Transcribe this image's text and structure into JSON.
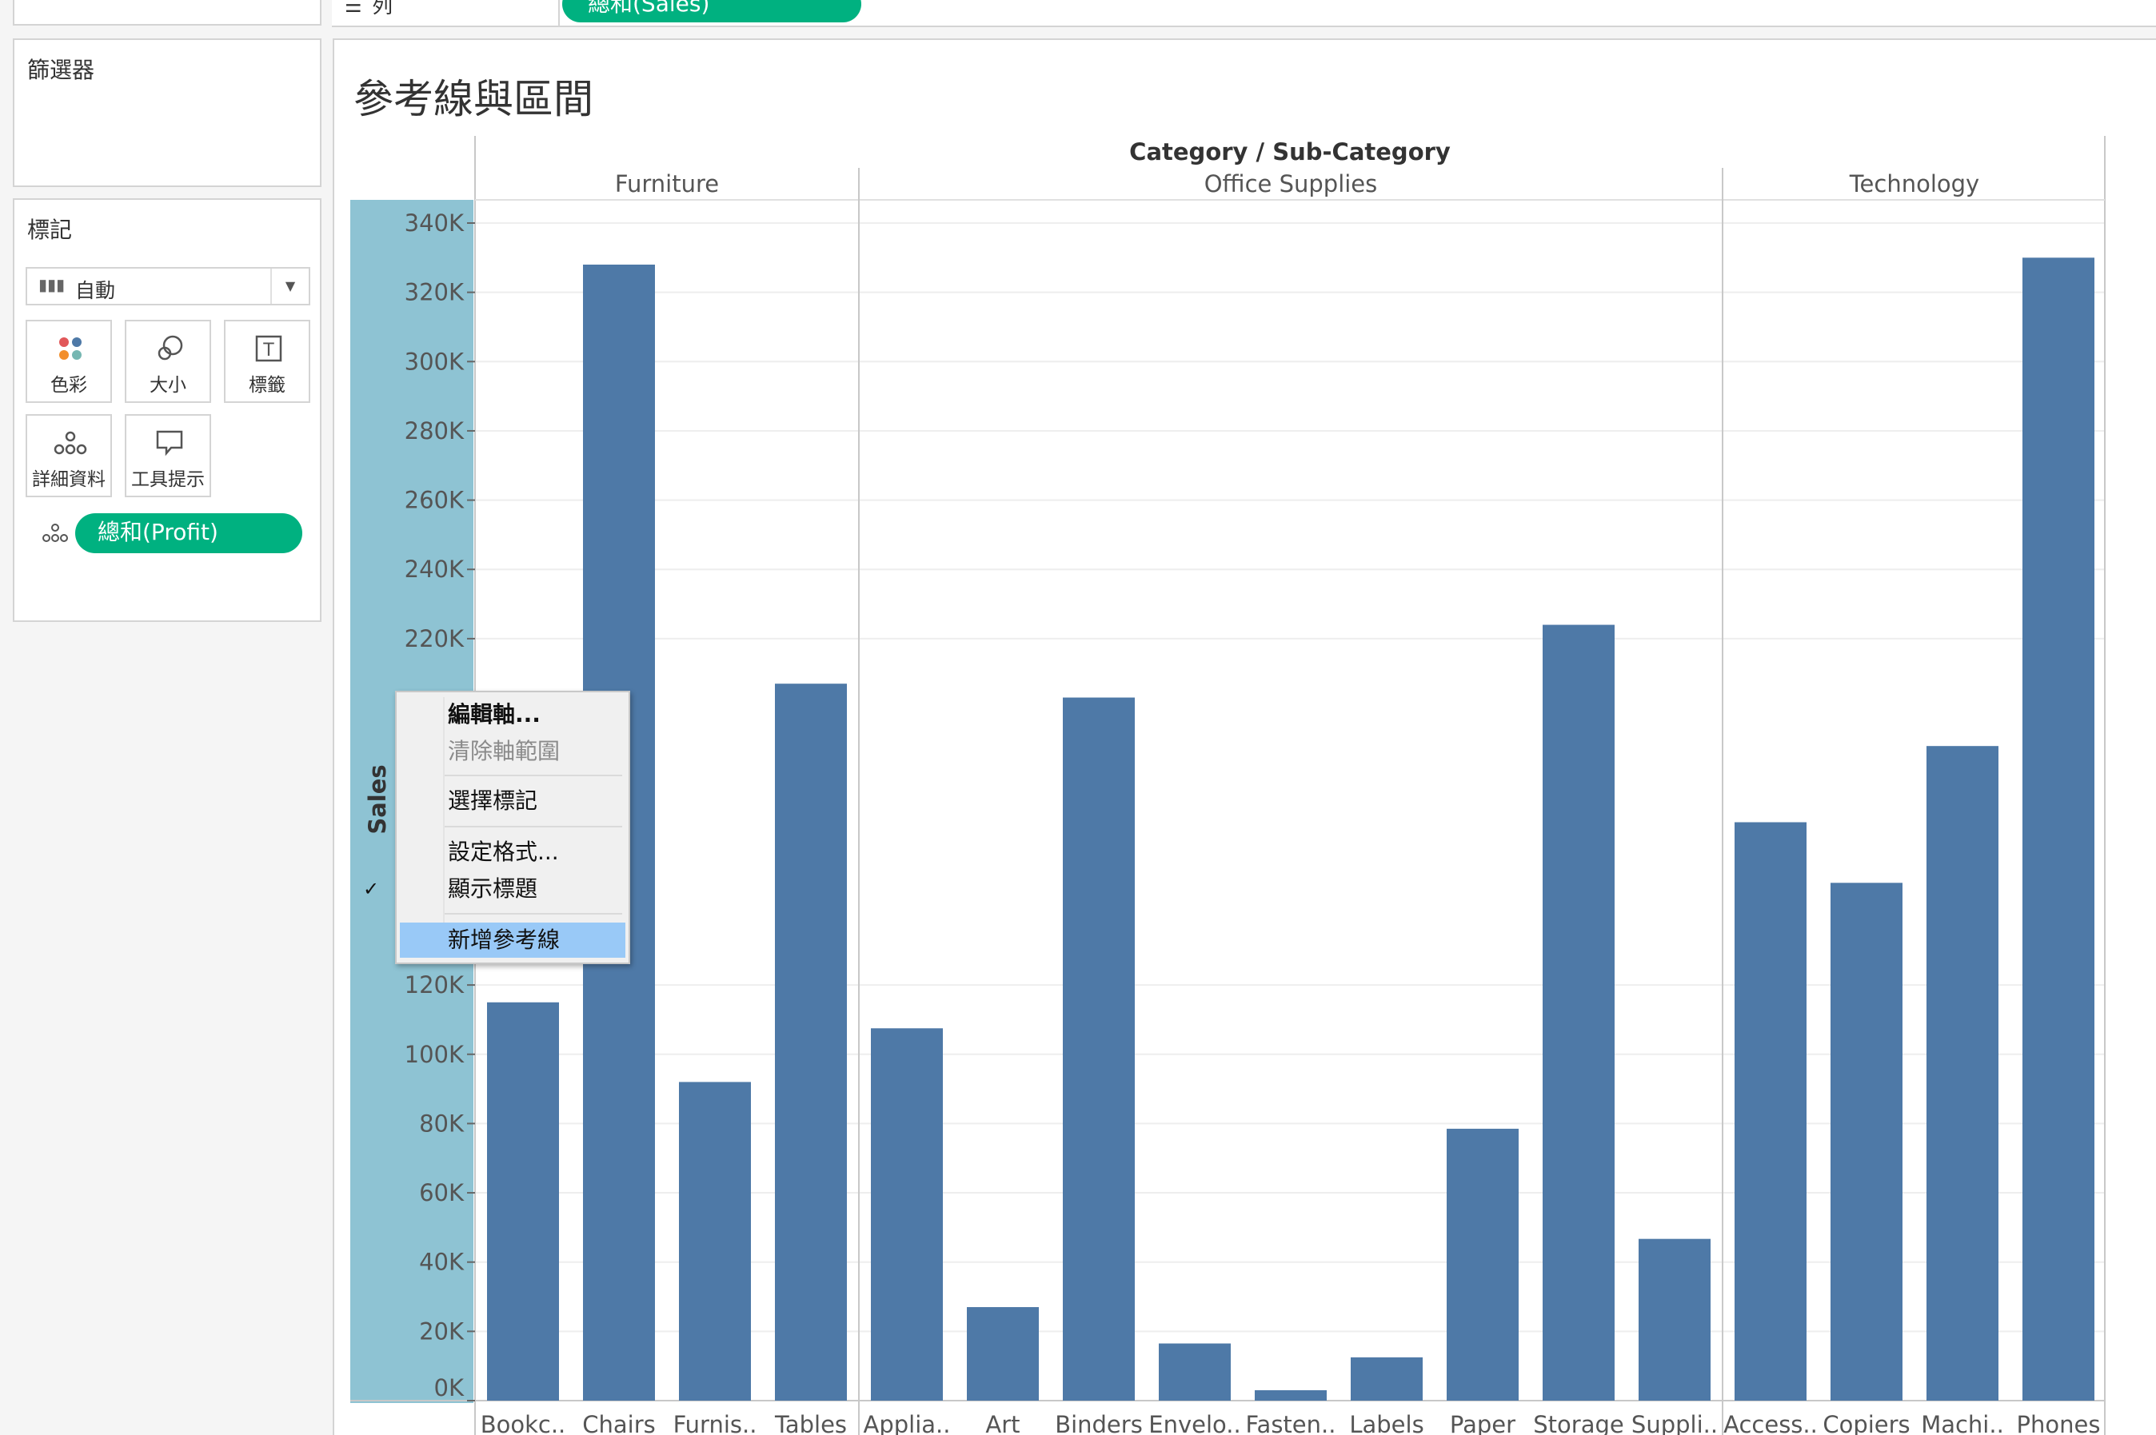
{
  "columns_shelf": {
    "label": "列",
    "pill": "總和(Sales)"
  },
  "filters": {
    "title": "篩選器"
  },
  "marks": {
    "title": "標記",
    "mark_type": "自動",
    "buttons": {
      "color": "色彩",
      "size": "大小",
      "label": "標籤",
      "detail": "詳細資料",
      "tooltip": "工具提示"
    },
    "pill": "總和(Profit)"
  },
  "sheet": {
    "title": "參考線與區間"
  },
  "context_menu": {
    "edit_axis": "編輯軸...",
    "clear_axis_range": "清除軸範圍",
    "select_marks": "選擇標記",
    "format": "設定格式...",
    "show_header": "顯示標題",
    "add_reference_line": "新增參考線"
  },
  "chart_data": {
    "type": "bar",
    "title": "參考線與區間",
    "column_header_title": "Category / Sub-Category",
    "ylabel": "Sales",
    "ylim": [
      0,
      345000
    ],
    "y_ticks": [
      "340K",
      "320K",
      "300K",
      "280K",
      "260K",
      "240K",
      "220K",
      "120K",
      "100K",
      "80K",
      "60K",
      "40K",
      "20K",
      "0K"
    ],
    "y_tick_values": [
      340000,
      320000,
      300000,
      280000,
      260000,
      240000,
      220000,
      120000,
      100000,
      80000,
      60000,
      40000,
      20000,
      0
    ],
    "grid": true,
    "groups": [
      {
        "name": "Furniture",
        "categories": [
          "Bookc..",
          "Chairs",
          "Furnis..",
          "Tables"
        ],
        "values": [
          115000,
          328000,
          92000,
          207000
        ]
      },
      {
        "name": "Office Supplies",
        "categories": [
          "Applia..",
          "Art",
          "Binders",
          "Envelo..",
          "Fasten..",
          "Labels",
          "Paper",
          "Storage",
          "Suppli.."
        ],
        "values": [
          107500,
          27000,
          203000,
          16500,
          3000,
          12500,
          78500,
          224000,
          46700
        ]
      },
      {
        "name": "Technology",
        "categories": [
          "Access..",
          "Copiers",
          "Machi..",
          "Phones"
        ],
        "values": [
          167000,
          149500,
          189000,
          330000
        ]
      }
    ],
    "bar_color": "#4e79a7"
  }
}
